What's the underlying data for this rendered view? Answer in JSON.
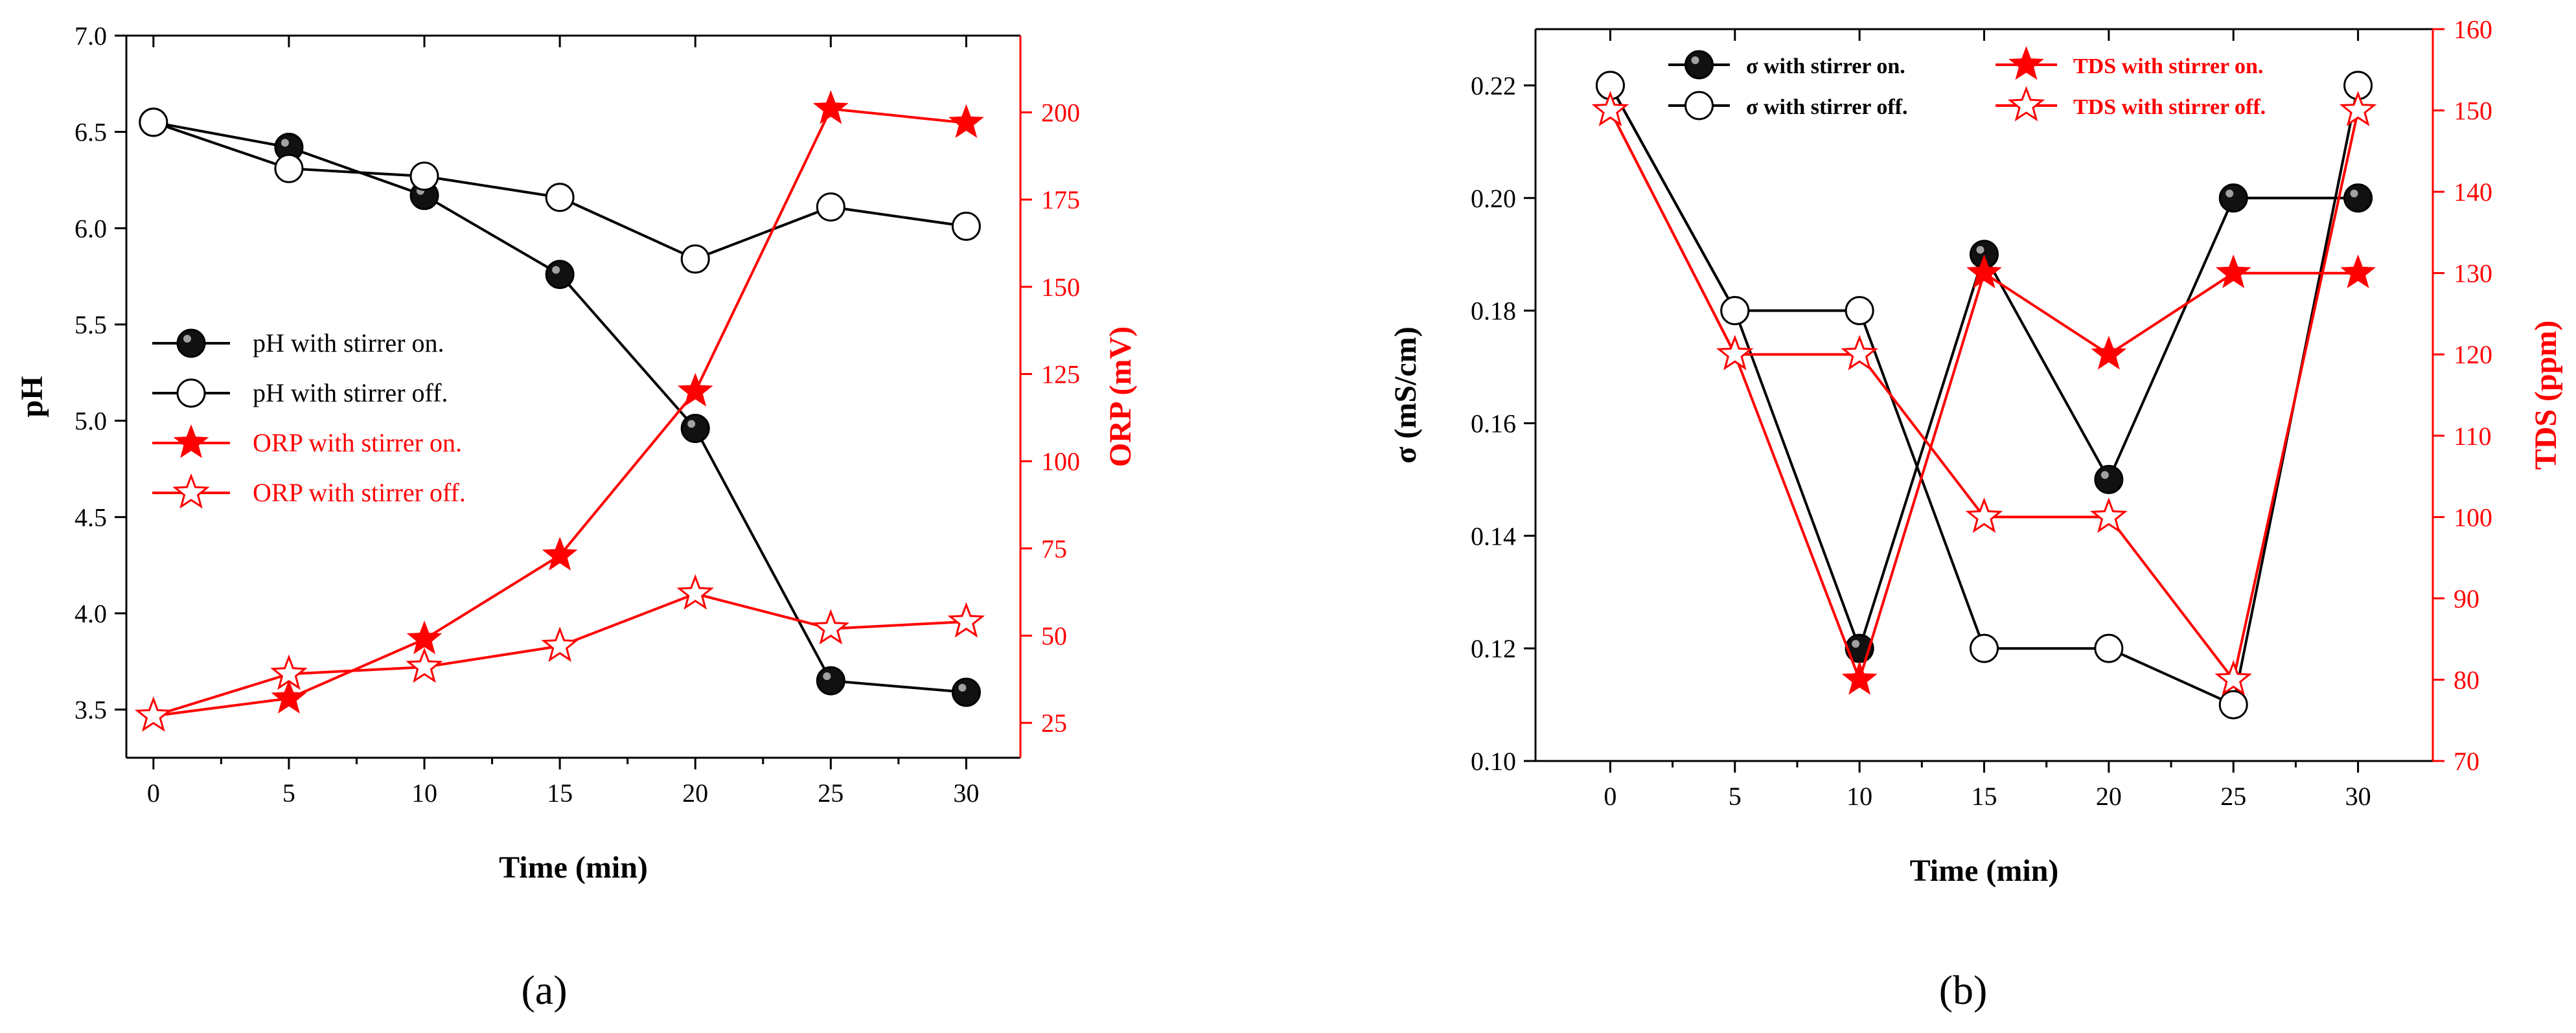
{
  "colors": {
    "primary": "#000000",
    "secondary": "#ff0000",
    "background": "#ffffff"
  },
  "chart_data": [
    {
      "panel_label": "(a)",
      "type": "line",
      "xlabel": "Time (min)",
      "ylabel_left": "pH",
      "ylabel_right": "ORP (mV)",
      "x_ticks": [
        0,
        5,
        10,
        15,
        20,
        25,
        30
      ],
      "x_range": [
        -1,
        32
      ],
      "left_ticks": [
        "3.5",
        "4.0",
        "4.5",
        "5.0",
        "5.5",
        "6.0",
        "6.5",
        "7.0"
      ],
      "left_range": [
        3.25,
        7.0
      ],
      "right_ticks": [
        "25",
        "50",
        "75",
        "100",
        "125",
        "150",
        "175",
        "200"
      ],
      "right_range": [
        15,
        222
      ],
      "legend_position": "center-left",
      "series": [
        {
          "name": "pH with stirrer on.",
          "axis": "left",
          "marker": "filled-circle",
          "color": "#000000",
          "x": [
            0,
            5,
            10,
            15,
            20,
            25,
            30
          ],
          "y": [
            6.55,
            6.42,
            6.17,
            5.76,
            4.96,
            3.65,
            3.59
          ]
        },
        {
          "name": "pH with stirrer off.",
          "axis": "left",
          "marker": "open-circle",
          "color": "#000000",
          "x": [
            0,
            5,
            10,
            15,
            20,
            25,
            30
          ],
          "y": [
            6.55,
            6.31,
            6.27,
            6.16,
            5.84,
            6.11,
            6.01
          ]
        },
        {
          "name": "ORP with stirrer on.",
          "axis": "right",
          "marker": "filled-star",
          "color": "#ff0000",
          "x": [
            0,
            5,
            10,
            15,
            20,
            25,
            30
          ],
          "y": [
            27,
            32,
            49,
            73,
            120,
            201,
            197
          ]
        },
        {
          "name": "ORP with stirrer off.",
          "axis": "right",
          "marker": "open-star",
          "color": "#ff0000",
          "x": [
            0,
            5,
            10,
            15,
            20,
            25,
            30
          ],
          "y": [
            27,
            39,
            41,
            47,
            62,
            52,
            54
          ]
        }
      ]
    },
    {
      "panel_label": "(b)",
      "type": "line",
      "xlabel": "Time (min)",
      "ylabel_left": "σ (mS/cm)",
      "ylabel_right": "TDS (ppm)",
      "x_ticks": [
        0,
        5,
        10,
        15,
        20,
        25,
        30
      ],
      "x_range": [
        -3,
        33
      ],
      "left_ticks": [
        "0.10",
        "0.12",
        "0.14",
        "0.16",
        "0.18",
        "0.20",
        "0.22"
      ],
      "left_range": [
        0.1,
        0.23
      ],
      "right_ticks": [
        "70",
        "80",
        "90",
        "100",
        "110",
        "120",
        "130",
        "140",
        "150",
        "160"
      ],
      "right_range": [
        70,
        160
      ],
      "legend_position": "top",
      "series": [
        {
          "name": "σ with stirrer on.",
          "axis": "left",
          "marker": "filled-circle",
          "color": "#000000",
          "x": [
            0,
            5,
            10,
            15,
            20,
            25,
            30
          ],
          "y": [
            0.22,
            0.18,
            0.12,
            0.19,
            0.15,
            0.2,
            0.2
          ]
        },
        {
          "name": "σ with stirrer off.",
          "axis": "left",
          "marker": "open-circle",
          "color": "#000000",
          "x": [
            0,
            5,
            10,
            15,
            20,
            25,
            30
          ],
          "y": [
            0.22,
            0.18,
            0.18,
            0.12,
            0.12,
            0.11,
            0.22
          ]
        },
        {
          "name": "TDS with stirrer on.",
          "axis": "right",
          "marker": "filled-star",
          "color": "#ff0000",
          "x": [
            0,
            5,
            10,
            15,
            20,
            25,
            30
          ],
          "y": [
            150,
            120,
            80,
            130,
            120,
            130,
            130
          ]
        },
        {
          "name": "TDS with stirrer off.",
          "axis": "right",
          "marker": "open-star",
          "color": "#ff0000",
          "x": [
            0,
            5,
            10,
            15,
            20,
            25,
            30
          ],
          "y": [
            150,
            120,
            120,
            100,
            100,
            80,
            150
          ]
        }
      ]
    }
  ]
}
